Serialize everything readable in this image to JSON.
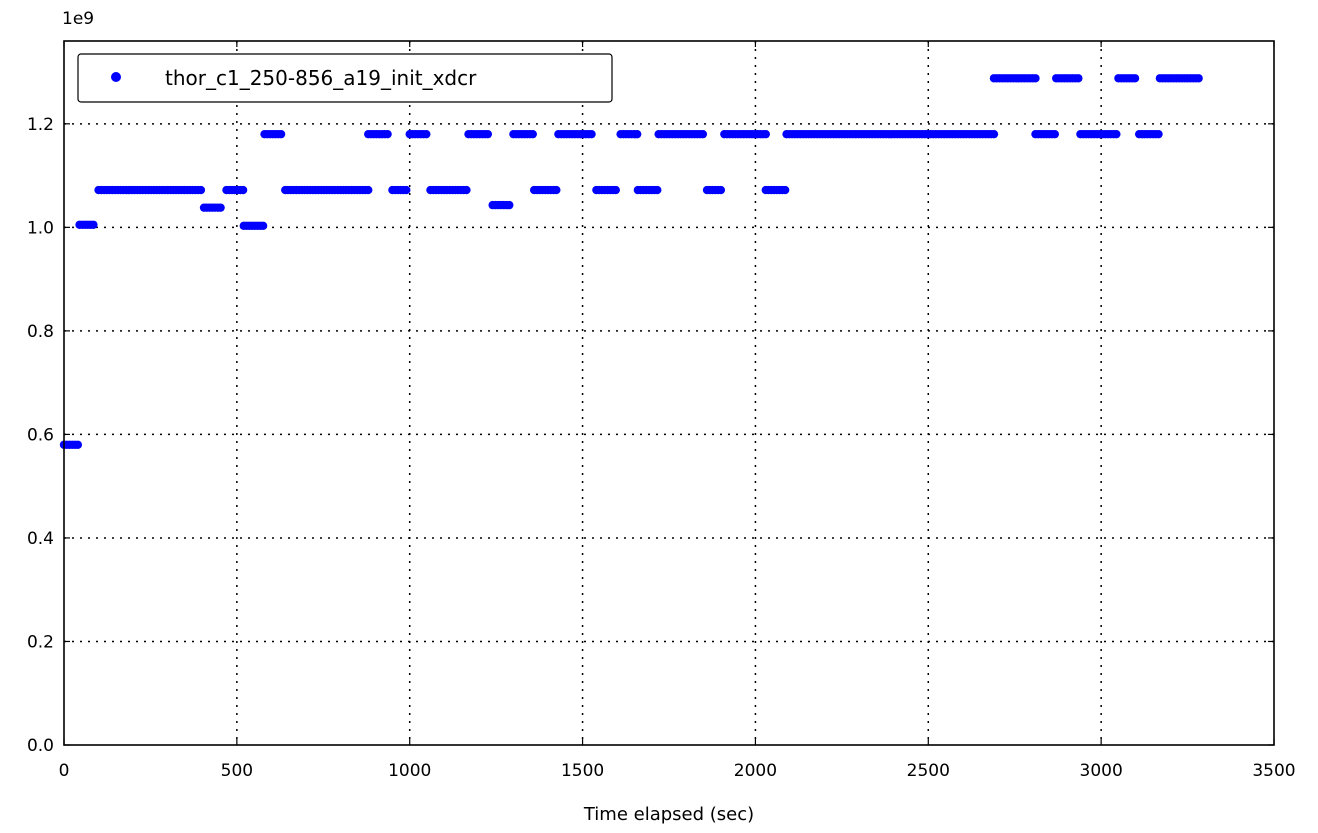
{
  "chart_data": {
    "type": "scatter",
    "xlabel": "Time elapsed (sec)",
    "ylabel": "",
    "y_offset_label": "1e9",
    "xlim": [
      0,
      3500
    ],
    "ylim": [
      0,
      1.36
    ],
    "xticks": [
      0,
      500,
      1000,
      1500,
      2000,
      2500,
      3000,
      3500
    ],
    "xtick_labels": [
      "0",
      "500",
      "1000",
      "1500",
      "2000",
      "2500",
      "3000",
      "3500"
    ],
    "yticks": [
      0.0,
      0.2,
      0.4,
      0.6,
      0.8,
      1.0,
      1.2
    ],
    "ytick_labels": [
      "0.0",
      "0.2",
      "0.4",
      "0.6",
      "0.8",
      "1.0",
      "1.2"
    ],
    "grid": true,
    "legend_position": "top-left",
    "series": [
      {
        "name": "thor_c1_250-856_a19_init_xdcr",
        "color": "#0000ff",
        "segments": [
          {
            "x_start": 0,
            "x_end": 45,
            "y": 0.58
          },
          {
            "x_start": 45,
            "x_end": 90,
            "y": 1.005
          },
          {
            "x_start": 100,
            "x_end": 400,
            "y": 1.072
          },
          {
            "x_start": 405,
            "x_end": 460,
            "y": 1.038
          },
          {
            "x_start": 470,
            "x_end": 520,
            "y": 1.072
          },
          {
            "x_start": 520,
            "x_end": 580,
            "y": 1.003
          },
          {
            "x_start": 580,
            "x_end": 630,
            "y": 1.18
          },
          {
            "x_start": 640,
            "x_end": 880,
            "y": 1.072
          },
          {
            "x_start": 880,
            "x_end": 940,
            "y": 1.18
          },
          {
            "x_start": 950,
            "x_end": 990,
            "y": 1.072
          },
          {
            "x_start": 1000,
            "x_end": 1050,
            "y": 1.18
          },
          {
            "x_start": 1060,
            "x_end": 1170,
            "y": 1.072
          },
          {
            "x_start": 1170,
            "x_end": 1230,
            "y": 1.18
          },
          {
            "x_start": 1240,
            "x_end": 1290,
            "y": 1.043
          },
          {
            "x_start": 1300,
            "x_end": 1360,
            "y": 1.18
          },
          {
            "x_start": 1360,
            "x_end": 1430,
            "y": 1.072
          },
          {
            "x_start": 1430,
            "x_end": 1530,
            "y": 1.18
          },
          {
            "x_start": 1540,
            "x_end": 1600,
            "y": 1.072
          },
          {
            "x_start": 1610,
            "x_end": 1660,
            "y": 1.18
          },
          {
            "x_start": 1660,
            "x_end": 1720,
            "y": 1.072
          },
          {
            "x_start": 1720,
            "x_end": 1850,
            "y": 1.18
          },
          {
            "x_start": 1860,
            "x_end": 1900,
            "y": 1.072
          },
          {
            "x_start": 1910,
            "x_end": 2030,
            "y": 1.18
          },
          {
            "x_start": 2030,
            "x_end": 2090,
            "y": 1.072
          },
          {
            "x_start": 2090,
            "x_end": 2690,
            "y": 1.18
          },
          {
            "x_start": 2690,
            "x_end": 2810,
            "y": 1.288
          },
          {
            "x_start": 2810,
            "x_end": 2870,
            "y": 1.18
          },
          {
            "x_start": 2870,
            "x_end": 2940,
            "y": 1.288
          },
          {
            "x_start": 2940,
            "x_end": 3050,
            "y": 1.18
          },
          {
            "x_start": 3050,
            "x_end": 3100,
            "y": 1.288
          },
          {
            "x_start": 3110,
            "x_end": 3170,
            "y": 1.18
          },
          {
            "x_start": 3170,
            "x_end": 3285,
            "y": 1.288
          }
        ],
        "sample_step_sec": 8
      }
    ]
  }
}
